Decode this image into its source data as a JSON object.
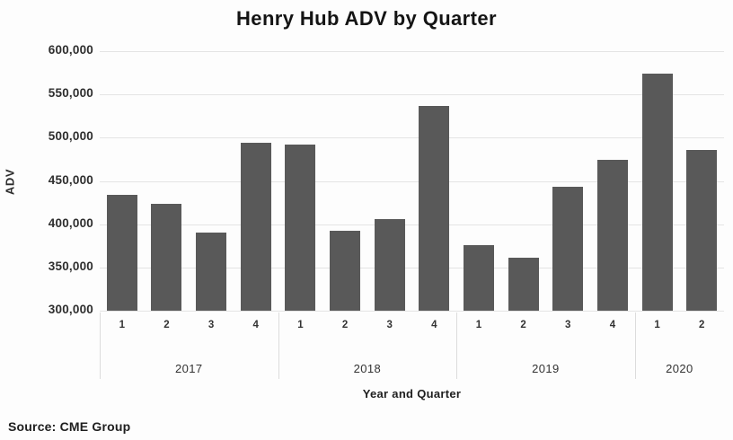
{
  "chart_data": {
    "type": "bar",
    "title": "Henry Hub ADV by Quarter",
    "xlabel": "Year and Quarter",
    "ylabel": "ADV",
    "source": "Source: CME Group",
    "ylim": [
      300000,
      600000
    ],
    "ytick_step": 50000,
    "ytick_labels": [
      "300,000",
      "350,000",
      "400,000",
      "450,000",
      "500,000",
      "550,000",
      "600,000"
    ],
    "grid": true,
    "legend_position": "none",
    "bar_color": "#595959",
    "gridline_color": "#e4e4e4",
    "categories": [
      "2017 Q1",
      "2017 Q2",
      "2017 Q3",
      "2017 Q4",
      "2018 Q1",
      "2018 Q2",
      "2018 Q3",
      "2018 Q4",
      "2019 Q1",
      "2019 Q2",
      "2019 Q3",
      "2019 Q4",
      "2020 Q1",
      "2020 Q2"
    ],
    "groups": [
      {
        "year": "2017",
        "quarters": [
          "1",
          "2",
          "3",
          "4"
        ],
        "values": [
          434000,
          424000,
          390000,
          494000
        ]
      },
      {
        "year": "2018",
        "quarters": [
          "1",
          "2",
          "3",
          "4"
        ],
        "values": [
          492000,
          392000,
          406000,
          537000
        ]
      },
      {
        "year": "2019",
        "quarters": [
          "1",
          "2",
          "3",
          "4"
        ],
        "values": [
          376000,
          361000,
          443000,
          474000
        ]
      },
      {
        "year": "2020",
        "quarters": [
          "1",
          "2"
        ],
        "values": [
          574000,
          486000
        ]
      }
    ]
  }
}
